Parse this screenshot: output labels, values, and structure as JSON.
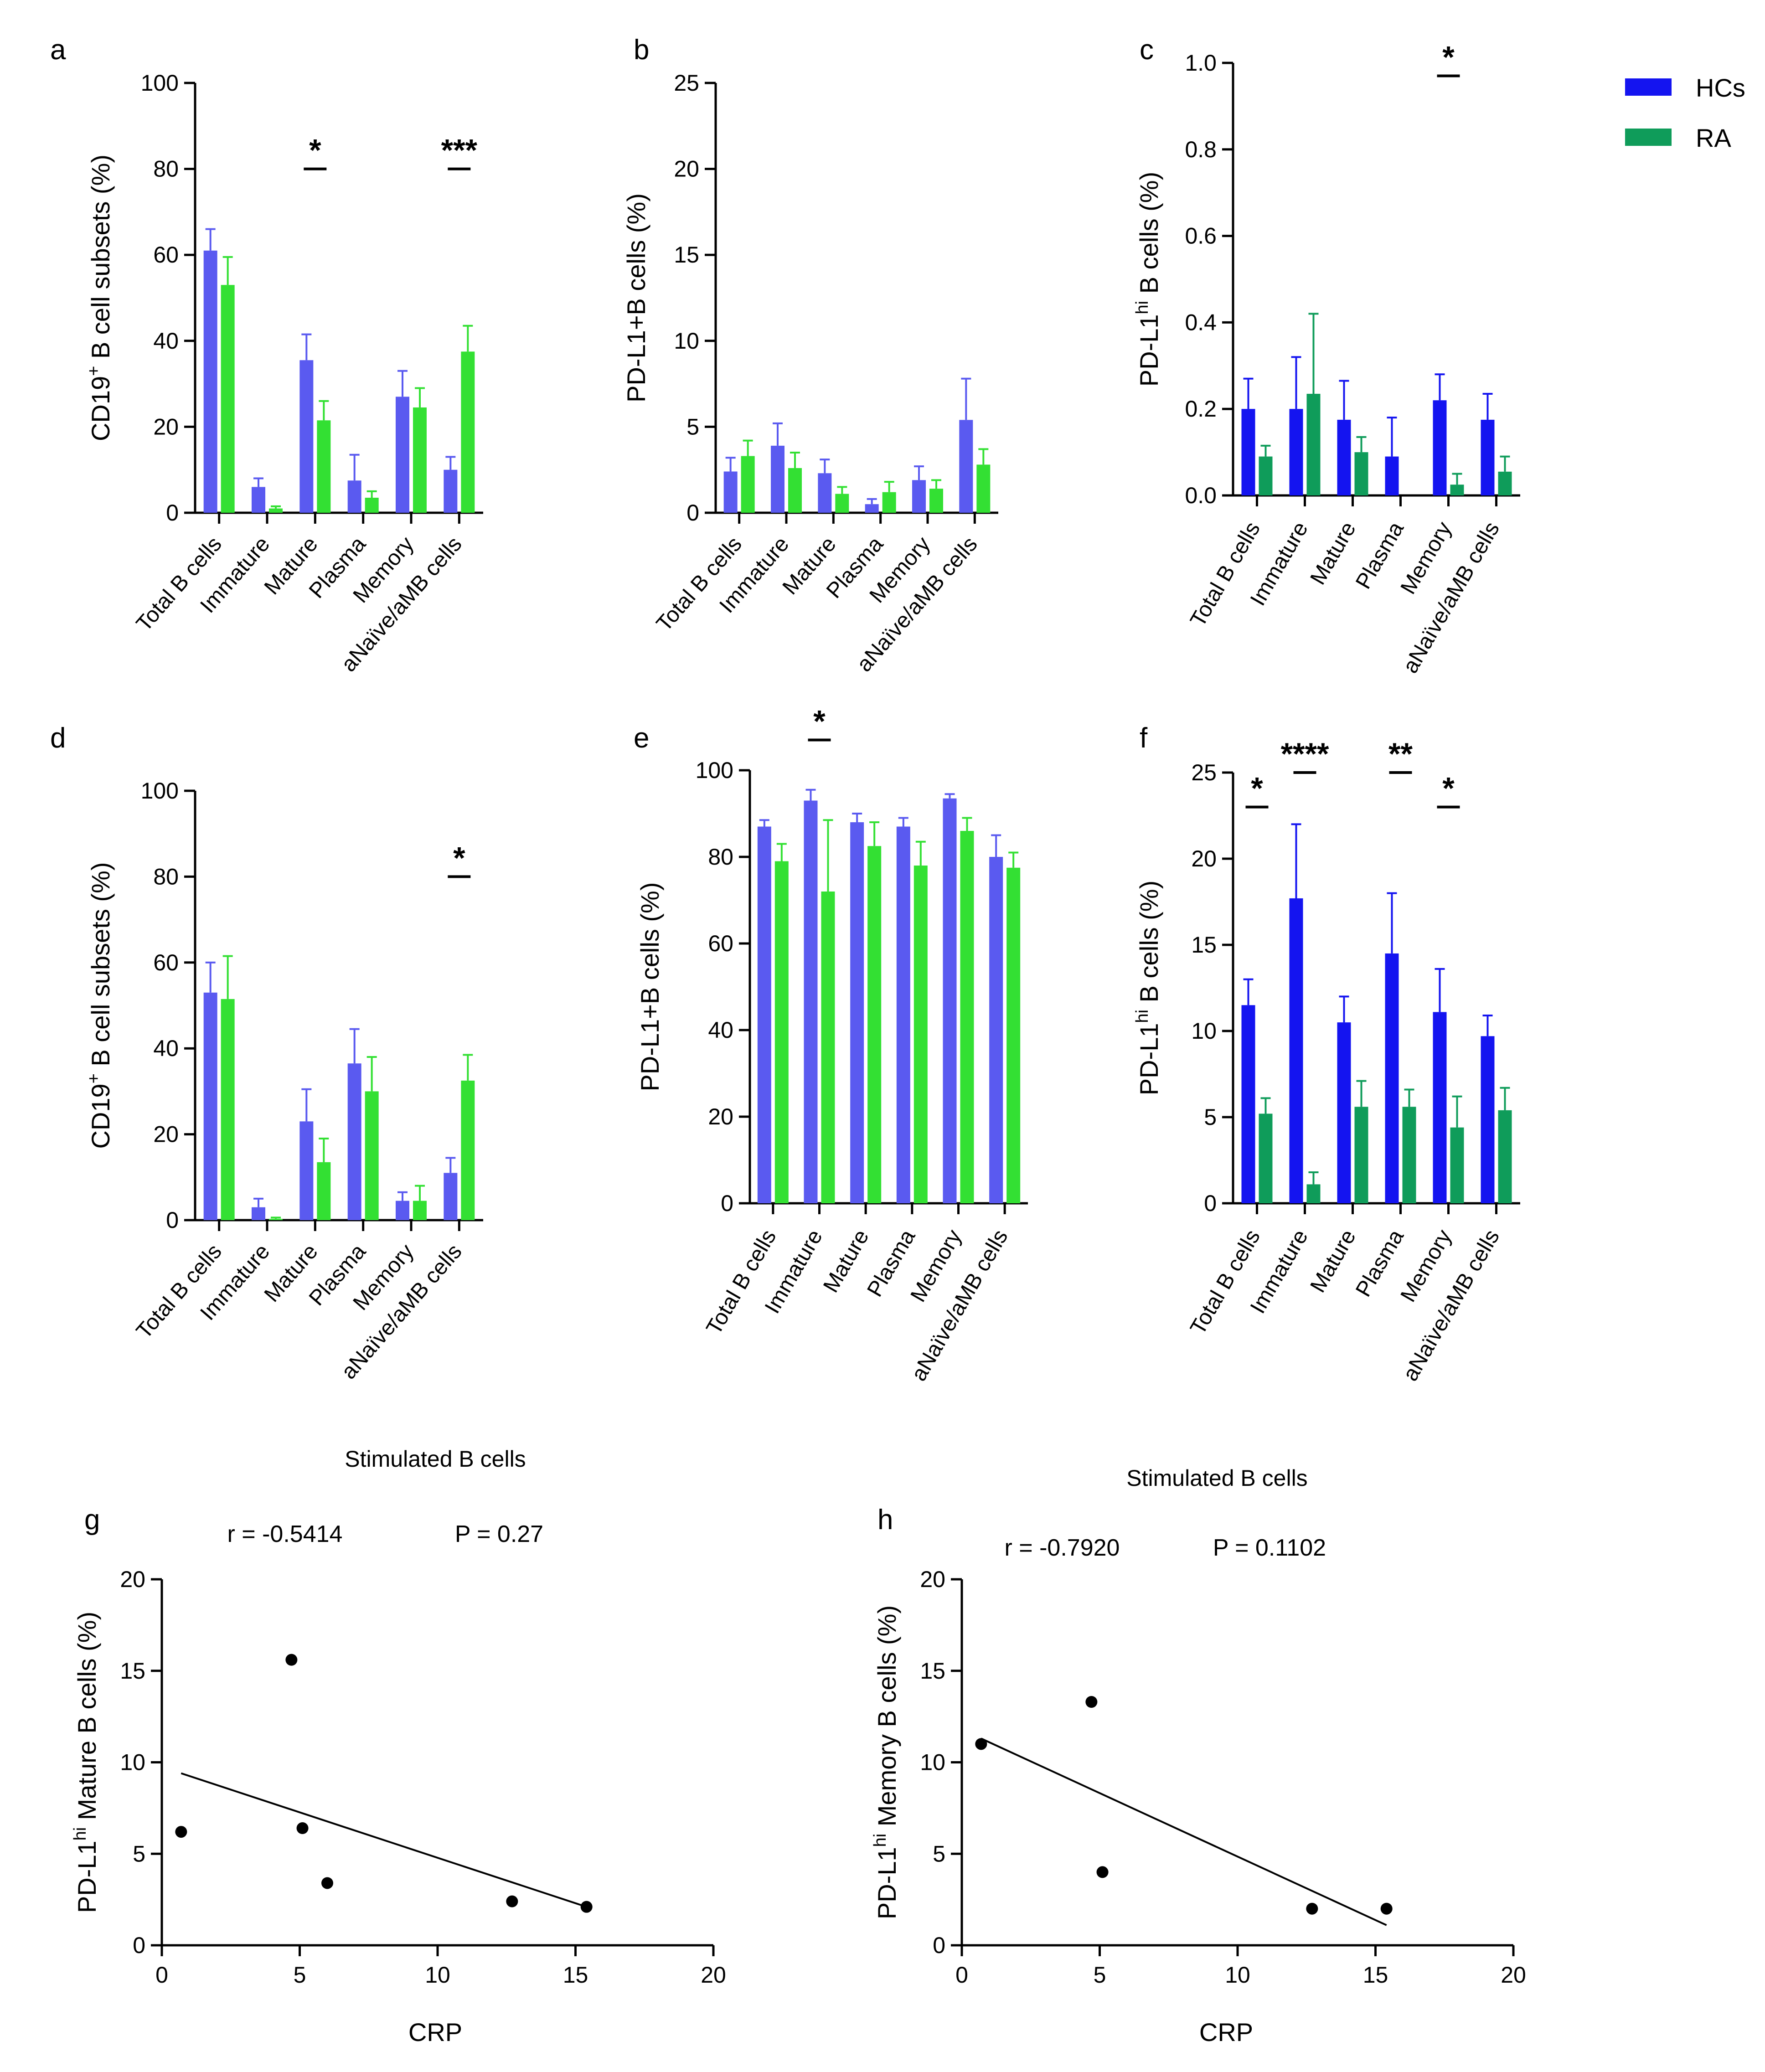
{
  "figure_legend": {
    "items": [
      {
        "label": "HCs",
        "color": "#1414f0"
      },
      {
        "label": "RA",
        "color": "#0f9c5a"
      }
    ]
  },
  "chart_data": [
    {
      "panel": "a",
      "type": "bar",
      "categories": [
        "Total B cells",
        "Immature",
        "Mature",
        "Plasma",
        "Memory",
        "aNaïve/aMB cells"
      ],
      "ylabel": {
        "pre": "CD19",
        "sup": "+",
        "post": " B cell subsets (%)"
      },
      "ylim": [
        0,
        100
      ],
      "yticks": [
        0,
        20,
        40,
        60,
        80,
        100
      ],
      "series": [
        {
          "name": "HCs",
          "color": "#5a5af0",
          "values": [
            61,
            6,
            35.5,
            7.5,
            27,
            10
          ],
          "errors": [
            5,
            2,
            6,
            6,
            6,
            3
          ]
        },
        {
          "name": "RA",
          "color": "#33e033",
          "values": [
            53,
            1,
            21.5,
            3.5,
            24.5,
            37.5
          ],
          "errors": [
            6.5,
            0.5,
            4.5,
            1.5,
            4.5,
            6
          ]
        }
      ],
      "significance": [
        {
          "category": 2,
          "label": "*",
          "y": 80
        },
        {
          "category": 5,
          "label": "***",
          "y": 80
        }
      ]
    },
    {
      "panel": "b",
      "type": "bar",
      "categories": [
        "Total B cells",
        "Immature",
        "Mature",
        "Plasma",
        "Memory",
        "aNaïve/aMB cells"
      ],
      "ylabel": {
        "pre": "PD-L1+B cells (%)",
        "sup": "",
        "post": ""
      },
      "ylim": [
        0,
        25
      ],
      "yticks": [
        0,
        5,
        10,
        15,
        20,
        25
      ],
      "series": [
        {
          "name": "HCs",
          "color": "#5a5af0",
          "values": [
            2.4,
            3.9,
            2.3,
            0.5,
            1.9,
            5.4
          ],
          "errors": [
            0.8,
            1.3,
            0.8,
            0.3,
            0.8,
            2.4
          ]
        },
        {
          "name": "RA",
          "color": "#33e033",
          "values": [
            3.3,
            2.6,
            1.1,
            1.2,
            1.4,
            2.8
          ],
          "errors": [
            0.9,
            0.9,
            0.4,
            0.6,
            0.5,
            0.9
          ]
        }
      ],
      "significance": []
    },
    {
      "panel": "c",
      "type": "bar",
      "categories": [
        "Total B cells",
        "Immature",
        "Mature",
        "Plasma",
        "Memory",
        "aNaïve/aMB cells"
      ],
      "ylabel": {
        "pre": "PD-L1",
        "sup": "hi",
        "post": " B cells (%)"
      },
      "ylim": [
        0,
        1.0
      ],
      "yticks": [
        0.0,
        0.2,
        0.4,
        0.6,
        0.8,
        1.0
      ],
      "tick_decimals": 1,
      "series": [
        {
          "name": "HCs",
          "color": "#1414f0",
          "values": [
            0.2,
            0.2,
            0.175,
            0.09,
            0.22,
            0.175
          ],
          "errors": [
            0.07,
            0.12,
            0.09,
            0.09,
            0.06,
            0.06
          ]
        },
        {
          "name": "RA",
          "color": "#0f9c5a",
          "values": [
            0.09,
            0.235,
            0.1,
            0,
            0.025,
            0.055
          ],
          "errors": [
            0.025,
            0.185,
            0.035,
            0,
            0.025,
            0.035
          ]
        }
      ],
      "significance": [
        {
          "category": 4,
          "label": "*",
          "y": 0.97
        }
      ]
    },
    {
      "panel": "d",
      "type": "bar",
      "categories": [
        "Total B cells",
        "Immature",
        "Mature",
        "Plasma",
        "Memory",
        "aNaïve/aMB cells"
      ],
      "ylabel": {
        "pre": "CD19",
        "sup": "+",
        "post": " B cell subsets (%)"
      },
      "ylim": [
        0,
        100
      ],
      "yticks": [
        0,
        20,
        40,
        60,
        80,
        100
      ],
      "series": [
        {
          "name": "HCs",
          "color": "#5a5af0",
          "values": [
            53,
            3,
            23,
            36.5,
            4.5,
            11
          ],
          "errors": [
            7,
            2,
            7.5,
            8,
            2,
            3.5
          ]
        },
        {
          "name": "RA",
          "color": "#33e033",
          "values": [
            51.5,
            0.3,
            13.5,
            30,
            4.5,
            32.5
          ],
          "errors": [
            10,
            0.3,
            5.5,
            8,
            3.5,
            6
          ]
        }
      ],
      "significance": [
        {
          "category": 5,
          "label": "*",
          "y": 80
        }
      ]
    },
    {
      "panel": "e",
      "type": "bar",
      "categories": [
        "Total B cells",
        "Immature",
        "Mature",
        "Plasma",
        "Memory",
        "aNaïve/aMB cells"
      ],
      "ylabel": {
        "pre": "PD-L1+B cells (%)",
        "sup": "",
        "post": ""
      },
      "ylim": [
        0,
        100
      ],
      "yticks": [
        0,
        20,
        40,
        60,
        80,
        100
      ],
      "series": [
        {
          "name": "HCs",
          "color": "#5a5af0",
          "values": [
            87,
            93,
            88,
            87,
            93.5,
            80
          ],
          "errors": [
            1.5,
            2.5,
            2,
            2,
            1,
            5
          ]
        },
        {
          "name": "RA",
          "color": "#33e033",
          "values": [
            79,
            72,
            82.5,
            78,
            86,
            77.5
          ],
          "errors": [
            4,
            16.5,
            5.5,
            5.5,
            3,
            3.5
          ]
        }
      ],
      "significance": [
        {
          "category": 1,
          "label": "*",
          "y": 107
        }
      ]
    },
    {
      "panel": "f",
      "type": "bar",
      "categories": [
        "Total B cells",
        "Immature",
        "Mature",
        "Plasma",
        "Memory",
        "aNaïve/aMB cells"
      ],
      "ylabel": {
        "pre": "PD-L1",
        "sup": "hi",
        "post": " B cells (%)"
      },
      "ylim": [
        0,
        25
      ],
      "yticks": [
        0,
        5,
        10,
        15,
        20,
        25
      ],
      "series": [
        {
          "name": "HCs",
          "color": "#1414f0",
          "values": [
            11.5,
            17.7,
            10.5,
            14.5,
            11.1,
            9.7
          ],
          "errors": [
            1.5,
            4.3,
            1.5,
            3.5,
            2.5,
            1.2
          ]
        },
        {
          "name": "RA",
          "color": "#0f9c5a",
          "values": [
            5.2,
            1.1,
            5.6,
            5.6,
            4.4,
            5.4
          ],
          "errors": [
            0.9,
            0.7,
            1.5,
            1,
            1.8,
            1.3
          ]
        }
      ],
      "significance": [
        {
          "category": 0,
          "label": "*",
          "y": 23
        },
        {
          "category": 1,
          "label": "****",
          "y": 25
        },
        {
          "category": 3,
          "label": "**",
          "y": 25
        },
        {
          "category": 4,
          "label": "*",
          "y": 23
        }
      ]
    },
    {
      "panel": "g",
      "type": "scatter",
      "title": "Stimulated B cells",
      "xlabel": "CRP",
      "ylabel": {
        "pre": "PD-L1",
        "sup": "hi",
        "post": " Mature B cells (%)"
      },
      "xlim": [
        0,
        20
      ],
      "ylim": [
        0,
        20
      ],
      "xticks": [
        0,
        5,
        10,
        15,
        20
      ],
      "yticks": [
        0,
        5,
        10,
        15,
        20
      ],
      "r_text": "r = -0.5414",
      "p_text": "P = 0.27",
      "x": [
        0.7,
        4.7,
        5.1,
        6,
        12.7,
        15.4
      ],
      "y": [
        6.2,
        15.6,
        6.4,
        3.4,
        2.4,
        2.1
      ],
      "fit_line": {
        "x": [
          0.7,
          15.4
        ],
        "y": [
          9.4,
          2.1
        ]
      }
    },
    {
      "panel": "h",
      "type": "scatter",
      "title": "Stimulated B cells",
      "xlabel": "CRP",
      "ylabel": {
        "pre": "PD-L1",
        "sup": "hi",
        "post": " Memory B cells (%)"
      },
      "xlim": [
        0,
        20
      ],
      "ylim": [
        0,
        20
      ],
      "xticks": [
        0,
        5,
        10,
        15,
        20
      ],
      "yticks": [
        0,
        5,
        10,
        15,
        20
      ],
      "r_text": "r = -0.7920",
      "p_text": "P = 0.1102",
      "x": [
        0.7,
        4.7,
        5.1,
        12.7,
        15.4
      ],
      "y": [
        11,
        13.3,
        4,
        2,
        2
      ],
      "fit_line": {
        "x": [
          0.7,
          15.4
        ],
        "y": [
          11.3,
          1.1
        ]
      }
    }
  ]
}
